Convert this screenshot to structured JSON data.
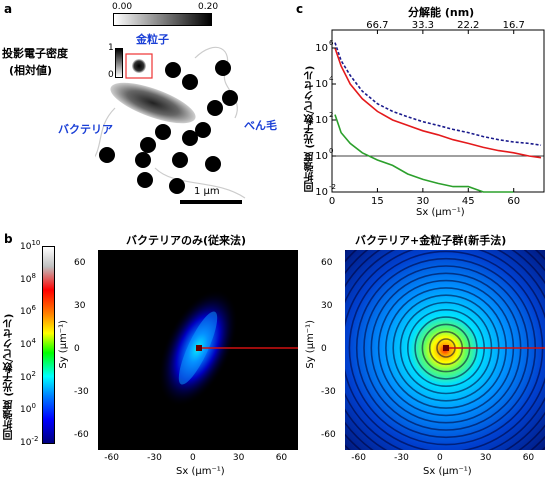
{
  "panel_a": {
    "letter": "a",
    "scale_min": "0.00",
    "scale_max": "0.20",
    "density_label_line1": "投影電子密度",
    "density_label_line2": "(相対値)",
    "inset_max": "1",
    "inset_min": "0",
    "gold_label": "金粒子",
    "bacteria_label": "バクテリア",
    "flagella_label": "べん毛",
    "scalebar_label": "1 μm"
  },
  "panel_b": {
    "letter": "b",
    "colorbar_label": "回折強度 (光子数/ピクセル)",
    "colorbar_ticks": [
      "10",
      "10",
      "10",
      "10",
      "10",
      "10",
      "10"
    ],
    "colorbar_exps": [
      "10",
      "8",
      "6",
      "4",
      "2",
      "0",
      "-2"
    ],
    "left_title": "バクテリアのみ(従来法)",
    "right_title": "バクテリア+金粒子群(新手法)",
    "x_ticks": [
      "-60",
      "-30",
      "0",
      "30",
      "60"
    ],
    "y_ticks": [
      "60",
      "30",
      "0",
      "-30",
      "-60"
    ],
    "x_label": "Sx (μm⁻¹)",
    "y_label": "Sy (μm⁻¹)"
  },
  "panel_c": {
    "letter": "c",
    "top_axis_label": "分解能 (nm)",
    "top_ticks": [
      "66.7",
      "33.3",
      "22.2",
      "16.7"
    ],
    "ylabel": "回折強度 (光子数/ピクセル)",
    "xlabel": "Sx (μm⁻¹)"
  },
  "chart_data": {
    "type": "line",
    "xlabel": "Sx (μm⁻¹)",
    "ylabel": "回折強度 (光子数/ピクセル)",
    "x_ticks": [
      0,
      15,
      30,
      45,
      60
    ],
    "xlim": [
      0,
      70
    ],
    "ylim": [
      0.01,
      10000000
    ],
    "yscale": "log",
    "y_ticks": [
      "10^6",
      "10^4",
      "10^2",
      "10^0",
      "10^-2"
    ],
    "reference_line_y": 1,
    "top_axis": {
      "label": "分解能 (nm)",
      "ticks": [
        "66.7",
        "33.3",
        "22.2",
        "16.7"
      ],
      "positions_sx": [
        15,
        30,
        45,
        60
      ]
    },
    "series": [
      {
        "color": "#1a1a8c",
        "style": "dashed",
        "x": [
          1,
          3,
          6,
          10,
          15,
          20,
          25,
          30,
          35,
          40,
          45,
          50,
          55,
          60,
          65,
          69
        ],
        "y": [
          2000000,
          200000,
          30000,
          4000,
          800,
          300,
          150,
          80,
          50,
          30,
          20,
          12,
          8,
          6,
          5,
          4
        ]
      },
      {
        "color": "#e41a1c",
        "style": "solid",
        "x": [
          1,
          3,
          6,
          10,
          15,
          20,
          25,
          30,
          35,
          40,
          45,
          50,
          55,
          60,
          65,
          69
        ],
        "y": [
          1000000,
          100000,
          10000,
          1500,
          300,
          100,
          50,
          25,
          15,
          8,
          5,
          3,
          2,
          1.5,
          1,
          0.8
        ]
      },
      {
        "color": "#2ca02c",
        "style": "solid",
        "x": [
          1,
          3,
          6,
          10,
          15,
          20,
          25,
          30,
          35,
          40,
          45,
          50,
          55,
          60
        ],
        "y": [
          200,
          20,
          5,
          1.5,
          0.6,
          0.3,
          0.1,
          0.05,
          0.03,
          0.02,
          0.02,
          0.01,
          0.01,
          0.01
        ]
      }
    ]
  }
}
